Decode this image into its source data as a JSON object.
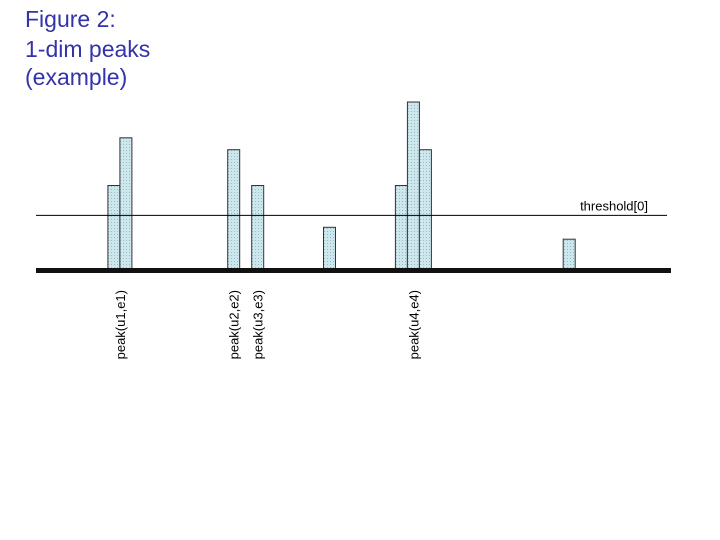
{
  "title": {
    "lines": [
      "Figure 2:",
      "1-dim peaks",
      "(example)"
    ]
  },
  "colors": {
    "title": "#3333aa",
    "bar_fill": "#cce8ee",
    "bar_stroke": "#333333",
    "baseline": "#111111",
    "threshold_line": "#000000",
    "label_text": "#000000"
  },
  "chart_data": {
    "type": "bar",
    "title": "",
    "xlabel": "",
    "ylabel": "",
    "ylim": [
      0,
      14
    ],
    "xlim": [
      0,
      53
    ],
    "grid": false,
    "legend": "none",
    "bars": [
      {
        "x": 6.5,
        "value": 7
      },
      {
        "x": 7.5,
        "value": 11
      },
      {
        "x": 16.5,
        "value": 10
      },
      {
        "x": 18.5,
        "value": 7
      },
      {
        "x": 24.5,
        "value": 3.5
      },
      {
        "x": 30.5,
        "value": 7
      },
      {
        "x": 31.5,
        "value": 14
      },
      {
        "x": 32.5,
        "value": 10
      },
      {
        "x": 44.5,
        "value": 2.5
      }
    ],
    "threshold": {
      "value": 4.5,
      "label": "threshold[0]"
    },
    "peak_labels": [
      {
        "x": 7,
        "text": "peak(u1,e1)"
      },
      {
        "x": 16.5,
        "text": "peak(u2,e2)"
      },
      {
        "x": 18.5,
        "text": "peak(u3,e3)"
      },
      {
        "x": 31.5,
        "text": "peak(u4,e4)"
      }
    ]
  }
}
